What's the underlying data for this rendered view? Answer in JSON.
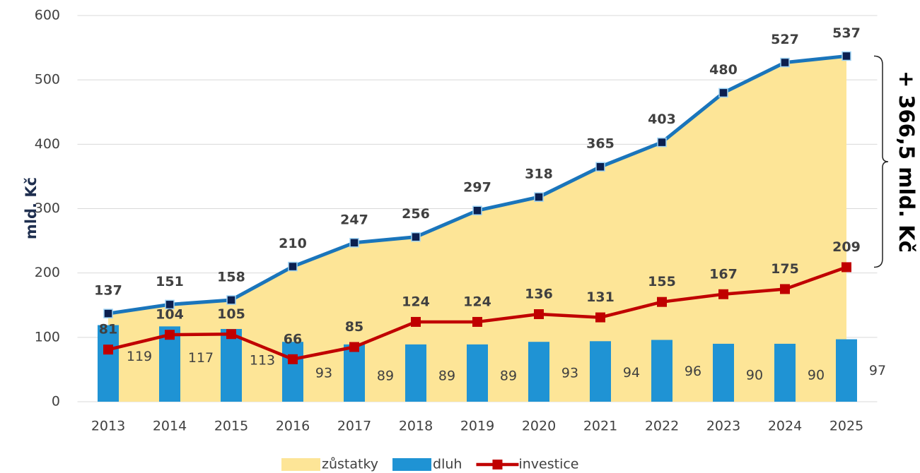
{
  "chart_data": {
    "type": "combo",
    "y_label": "mld. Kč",
    "categories": [
      "2013",
      "2014",
      "2015",
      "2016",
      "2017",
      "2018",
      "2019",
      "2020",
      "2021",
      "2022",
      "2023",
      "2024",
      "2025"
    ],
    "series": [
      {
        "name": "zůstatky",
        "type": "area",
        "color": "#fde597",
        "line_color": "#1a75bb",
        "marker_color": "#0b1f4f",
        "values": [
          137,
          151,
          158,
          210,
          247,
          256,
          297,
          318,
          365,
          403,
          480,
          527,
          537
        ]
      },
      {
        "name": "dluh",
        "type": "bar",
        "color": "#1f93d4",
        "values": [
          119,
          117,
          113,
          93,
          89,
          89,
          89,
          93,
          94,
          96,
          90,
          90,
          97
        ]
      },
      {
        "name": "investice",
        "type": "line",
        "color": "#c00000",
        "values": [
          81,
          104,
          105,
          66,
          85,
          124,
          124,
          136,
          131,
          155,
          167,
          175,
          209
        ]
      }
    ],
    "ylim": [
      0,
      600
    ],
    "yticks": [
      0,
      100,
      200,
      300,
      400,
      500,
      600
    ],
    "grid": true,
    "legend": "bottom",
    "annotation": "+ 366,5 mld. Kč"
  }
}
